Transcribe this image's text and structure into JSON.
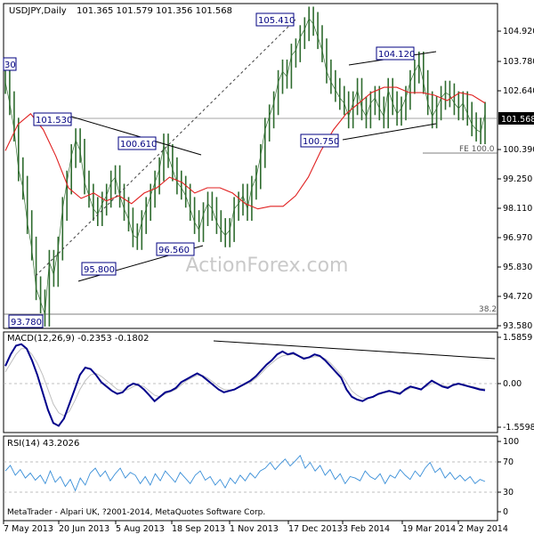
{
  "chart_data": {
    "type": "line",
    "symbol": "USDJPY,Daily",
    "ohlc_header": "101.365 101.579 101.356 101.568",
    "watermark": "ActionForex.com",
    "footer": "MetaTrader - Alpari UK, ?2001-2014, MetaQuotes Software Corp.",
    "x_ticks": [
      "7 May 2013",
      "20 Jun 2013",
      "5 Aug 2013",
      "18 Sep 2013",
      "1 Nov 2013",
      "17 Dec 2013",
      "3 Feb 2014",
      "19 Mar 2014",
      "2 May 2014"
    ],
    "price_panel": {
      "y_ticks": [
        "104.920",
        "103.780",
        "102.640",
        "101.568",
        "100.390",
        "99.250",
        "98.110",
        "96.970",
        "95.830",
        "94.720",
        "93.580"
      ],
      "current_price": "101.568",
      "ylim": [
        93.58,
        105.5
      ],
      "annotations": [
        "105.410",
        "104.120",
        "101.530",
        "100.610",
        "100.750",
        "96.560",
        "95.800",
        "93.780",
        "30",
        "FE 100.0",
        "38.2"
      ],
      "close_series": [
        102.8,
        102.0,
        101.0,
        99.5,
        98.8,
        97.5,
        96.5,
        95.0,
        94.5,
        94.0,
        96.0,
        95.5,
        96.5,
        98.0,
        99.0,
        100.0,
        100.6,
        100.2,
        99.0,
        98.5,
        98.0,
        97.8,
        98.2,
        98.5,
        99.0,
        99.2,
        98.5,
        98.0,
        97.6,
        97.0,
        96.9,
        97.5,
        98.0,
        98.5,
        99.0,
        99.5,
        100.4,
        100.0,
        99.5,
        99.0,
        98.8,
        98.5,
        98.0,
        97.5,
        97.2,
        97.8,
        98.2,
        98.0,
        97.5,
        97.2,
        97.0,
        97.2,
        98.0,
        98.2,
        98.5,
        98.0,
        98.8,
        99.2,
        100.0,
        101.0,
        101.5,
        102.0,
        102.8,
        103.2,
        103.0,
        103.8,
        104.0,
        104.5,
        104.8,
        105.2,
        105.0,
        104.5,
        104.0,
        103.2,
        102.8,
        102.5,
        102.2,
        102.0,
        101.5,
        102.0,
        102.5,
        101.8,
        101.5,
        102.0,
        102.2,
        101.8,
        101.5,
        102.5,
        102.0,
        101.6,
        101.8,
        102.2,
        102.8,
        103.2,
        103.5,
        102.8,
        102.0,
        101.5,
        101.8,
        102.2,
        102.4,
        102.3,
        102.0,
        101.8,
        102.0,
        101.6,
        101.2,
        101.0,
        100.9,
        101.6
      ],
      "ma_series": [
        100.2,
        101.2,
        101.6,
        101.0,
        100.0,
        98.8,
        98.4,
        98.6,
        98.3,
        98.5,
        98.2,
        98.6,
        98.8,
        99.2,
        99.0,
        98.6,
        98.8,
        98.8,
        98.6,
        98.2,
        98.0,
        98.1,
        98.1,
        98.5,
        99.2,
        100.2,
        101.0,
        101.6,
        102.0,
        102.4,
        102.6,
        102.6,
        102.4,
        102.4,
        102.3,
        102.1,
        102.4,
        102.3,
        102.0
      ]
    },
    "macd_panel": {
      "label": "MACD(12,26,9) -0.2353 -0.1802",
      "y_ticks": [
        "1.5859",
        "0.00",
        "-1.5598"
      ],
      "macd_series": [
        0.6,
        1.0,
        1.3,
        1.35,
        1.2,
        0.8,
        0.3,
        -0.3,
        -0.9,
        -1.35,
        -1.45,
        -1.2,
        -0.7,
        -0.2,
        0.3,
        0.55,
        0.5,
        0.3,
        0.05,
        -0.1,
        -0.25,
        -0.35,
        -0.3,
        -0.1,
        0.0,
        -0.05,
        -0.2,
        -0.4,
        -0.6,
        -0.45,
        -0.3,
        -0.25,
        -0.15,
        0.05,
        0.15,
        0.25,
        0.35,
        0.25,
        0.1,
        -0.05,
        -0.2,
        -0.3,
        -0.25,
        -0.2,
        -0.1,
        0.0,
        0.1,
        0.25,
        0.45,
        0.65,
        0.8,
        1.0,
        1.1,
        1.0,
        1.05,
        0.95,
        0.85,
        0.9,
        1.0,
        0.95,
        0.8,
        0.6,
        0.4,
        0.2,
        -0.2,
        -0.45,
        -0.55,
        -0.6,
        -0.5,
        -0.45,
        -0.35,
        -0.3,
        -0.25,
        -0.3,
        -0.35,
        -0.2,
        -0.1,
        -0.15,
        -0.2,
        -0.05,
        0.1,
        0.0,
        -0.1,
        -0.15,
        -0.05,
        0.0,
        -0.05,
        -0.1,
        -0.15,
        -0.2,
        -0.23
      ],
      "signal_series": [
        0.4,
        0.7,
        1.0,
        1.2,
        1.2,
        1.0,
        0.7,
        0.3,
        -0.2,
        -0.7,
        -1.0,
        -1.1,
        -0.95,
        -0.6,
        -0.2,
        0.1,
        0.3,
        0.35,
        0.25,
        0.1,
        -0.05,
        -0.2,
        -0.25,
        -0.2,
        -0.1,
        -0.05,
        -0.1,
        -0.25,
        -0.4,
        -0.45,
        -0.35,
        -0.28,
        -0.2,
        -0.05,
        0.1,
        0.2,
        0.28,
        0.28,
        0.18,
        0.05,
        -0.1,
        -0.2,
        -0.22,
        -0.2,
        -0.12,
        -0.03,
        0.05,
        0.18,
        0.35,
        0.55,
        0.7,
        0.85,
        0.95,
        0.98,
        1.0,
        0.95,
        0.9,
        0.88,
        0.92,
        0.92,
        0.85,
        0.7,
        0.5,
        0.3,
        0.05,
        -0.25,
        -0.4,
        -0.5,
        -0.5,
        -0.45,
        -0.38,
        -0.32,
        -0.28,
        -0.28,
        -0.3,
        -0.25,
        -0.15,
        -0.15,
        -0.18,
        -0.1,
        0.0,
        0.0,
        -0.06,
        -0.1,
        -0.07,
        -0.03,
        -0.04,
        -0.08,
        -0.12,
        -0.16,
        -0.18
      ]
    },
    "rsi_panel": {
      "label": "RSI(14) 43.2026",
      "y_ticks": [
        "100",
        "70",
        "30",
        "0"
      ],
      "levels": [
        70,
        30
      ],
      "rsi_series": [
        58,
        66,
        52,
        60,
        48,
        55,
        45,
        52,
        40,
        58,
        42,
        50,
        36,
        46,
        30,
        48,
        38,
        55,
        62,
        50,
        58,
        44,
        54,
        62,
        48,
        56,
        52,
        40,
        50,
        38,
        54,
        44,
        58,
        50,
        42,
        56,
        48,
        40,
        52,
        58,
        45,
        50,
        38,
        46,
        34,
        48,
        40,
        52,
        44,
        55,
        48,
        58,
        62,
        70,
        60,
        68,
        75,
        65,
        72,
        80,
        62,
        70,
        58,
        66,
        52,
        60,
        46,
        54,
        40,
        50,
        48,
        44,
        58,
        50,
        46,
        54,
        40,
        52,
        48,
        60,
        52,
        46,
        58,
        50,
        62,
        70,
        56,
        62,
        48,
        56,
        46,
        52,
        44,
        50,
        40,
        46,
        43
      ]
    },
    "colors": {
      "candles": "#2e6b2e",
      "ma": "#e02020",
      "macd": "#00008b",
      "signal": "#bfbfbf",
      "rsi": "#3a8fd8",
      "annotation": "#000080",
      "dotted": "#404040"
    }
  }
}
